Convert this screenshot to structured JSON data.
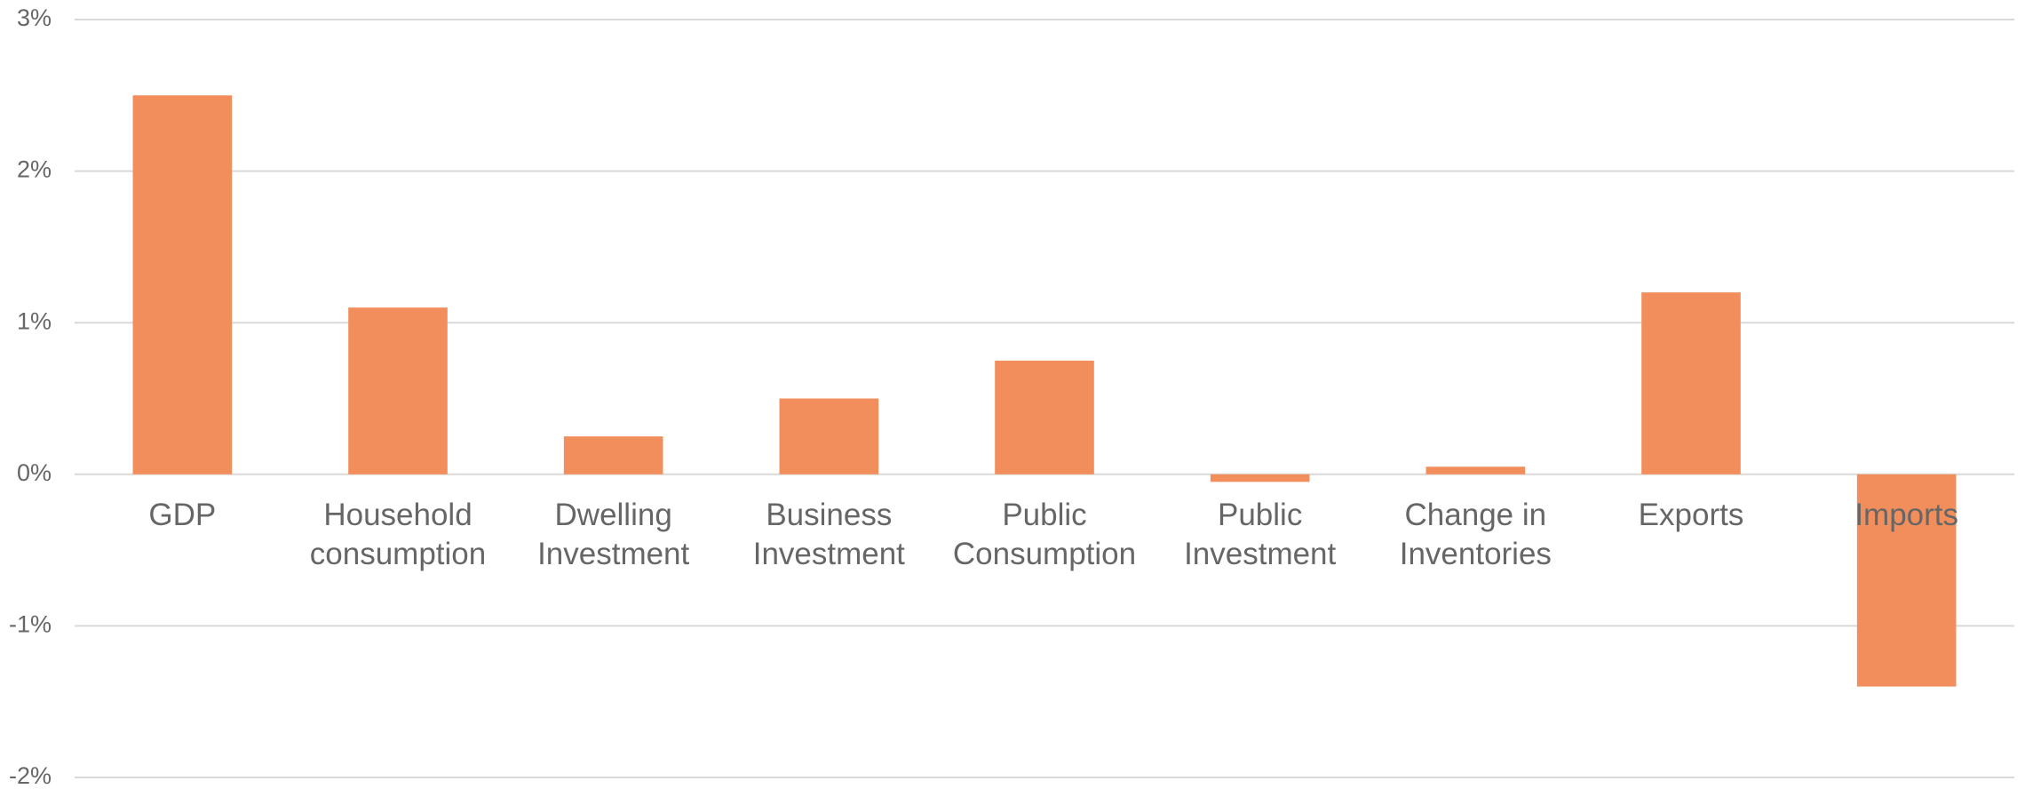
{
  "chart_data": {
    "type": "bar",
    "categories": [
      [
        "GDP"
      ],
      [
        "Household",
        "consumption"
      ],
      [
        "Dwelling",
        "Investment"
      ],
      [
        "Business",
        "Investment"
      ],
      [
        "Public",
        "Consumption"
      ],
      [
        "Public",
        "Investment"
      ],
      [
        "Change in",
        "Inventories"
      ],
      [
        "Exports"
      ],
      [
        "Imports"
      ]
    ],
    "values": [
      2.5,
      1.1,
      0.25,
      0.5,
      0.75,
      -0.05,
      0.05,
      1.2,
      -1.4
    ],
    "color": "#f28e5b",
    "ylim": [
      -2,
      3
    ],
    "yticks": [
      {
        "value": 3,
        "label": "3%"
      },
      {
        "value": 2,
        "label": "2%"
      },
      {
        "value": 1,
        "label": "1%"
      },
      {
        "value": 0,
        "label": "0%"
      },
      {
        "value": -1,
        "label": "-1%"
      },
      {
        "value": -2,
        "label": "-2%"
      }
    ],
    "grid": true
  }
}
